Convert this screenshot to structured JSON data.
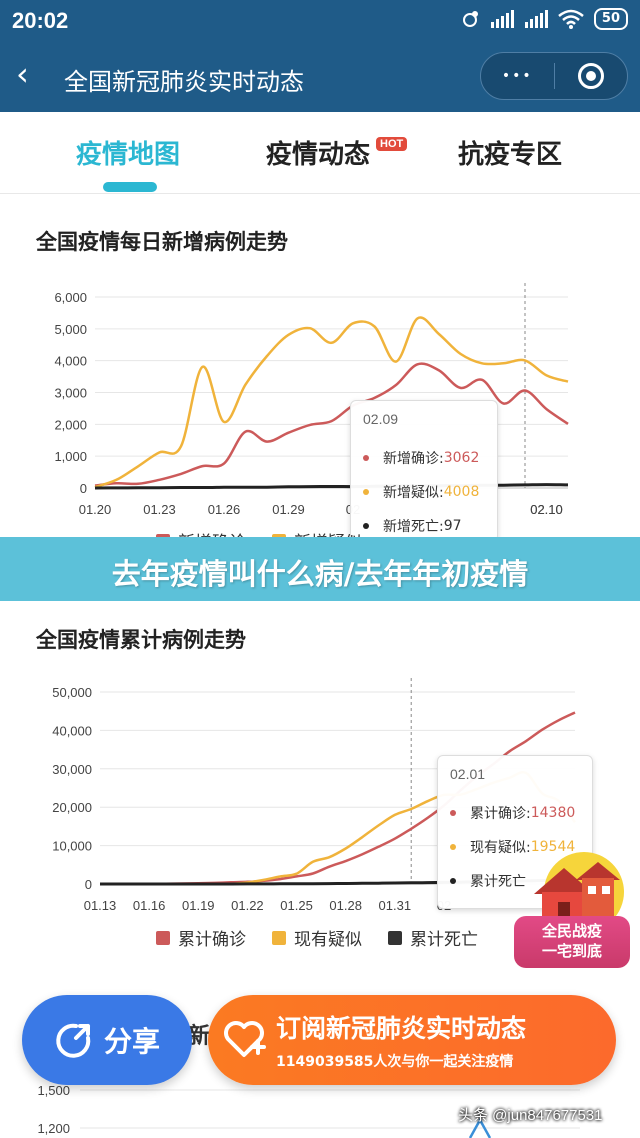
{
  "status_bar": {
    "time": "20:02",
    "battery": "50"
  },
  "title_bar": {
    "title": "全国新冠肺炎实时动态",
    "more_glyph": "•••",
    "back_glyph": "‹"
  },
  "tabs": [
    {
      "label": "疫情地图",
      "active": true
    },
    {
      "label": "疫情动态",
      "badge": "HOT"
    },
    {
      "label": "抗疫专区"
    }
  ],
  "colors": {
    "confirmed": "#cc5a5a",
    "suspected": "#f0b33b",
    "death": "#222222",
    "accent": "#2bb7d2",
    "header": "#1f5b88"
  },
  "chart_data": [
    {
      "type": "line",
      "title": "全国疫情每日新增病例走势",
      "x": [
        "01.20",
        "01.21",
        "01.22",
        "01.23",
        "01.24",
        "01.25",
        "01.26",
        "01.27",
        "01.28",
        "01.29",
        "01.30",
        "01.31",
        "02.01",
        "02.02",
        "02.03",
        "02.04",
        "02.05",
        "02.06",
        "02.07",
        "02.08",
        "02.09",
        "02.10",
        "02.11"
      ],
      "x_ticks": [
        "01.20",
        "01.23",
        "01.26",
        "01.29",
        "02",
        "",
        "",
        "02.10"
      ],
      "y_ticks": [
        "0",
        "1,000",
        "2,000",
        "3,000",
        "4,000",
        "5,000",
        "6,000"
      ],
      "ylim": [
        0,
        6000
      ],
      "grid": true,
      "series": [
        {
          "name": "新增确诊",
          "values": [
            77,
            149,
            131,
            259,
            444,
            688,
            769,
            1771,
            1459,
            1737,
            1982,
            2102,
            2590,
            2829,
            3235,
            3887,
            3694,
            3143,
            3399,
            2656,
            3062,
            2478,
            2015
          ]
        },
        {
          "name": "新增疑似",
          "values": [
            27,
            257,
            680,
            1118,
            1309,
            3806,
            2077,
            3248,
            4148,
            4812,
            5019,
            4562,
            5173,
            5072,
            3971,
            5328,
            4833,
            4214,
            3916,
            3916,
            4008,
            3536,
            3342
          ]
        },
        {
          "name": "新增死亡",
          "values": [
            0,
            3,
            8,
            8,
            16,
            15,
            24,
            26,
            26,
            38,
            43,
            46,
            45,
            57,
            64,
            65,
            73,
            73,
            86,
            89,
            97,
            108,
            97
          ]
        }
      ],
      "legend_labels": [
        "新增确诊",
        "新增疑似"
      ],
      "crosshair_x": "02.09",
      "tooltip": {
        "date": "02.09",
        "rows": [
          {
            "label": "新增确诊: ",
            "value": "3062"
          },
          {
            "label": "新增疑似: ",
            "value": "4008"
          },
          {
            "label": "新增死亡: ",
            "value": "97"
          }
        ]
      }
    },
    {
      "type": "line",
      "title": "全国疫情累计病例走势",
      "x": [
        "01.13",
        "01.14",
        "01.15",
        "01.16",
        "01.17",
        "01.18",
        "01.19",
        "01.20",
        "01.21",
        "01.22",
        "01.23",
        "01.24",
        "01.25",
        "01.26",
        "01.27",
        "01.28",
        "01.29",
        "01.30",
        "01.31",
        "02.01",
        "02.02",
        "02.03",
        "02.04",
        "02.05",
        "02.06",
        "02.07",
        "02.08",
        "02.09",
        "02.10",
        "02.11"
      ],
      "x_ticks": [
        "01.13",
        "01.16",
        "01.19",
        "01.22",
        "01.25",
        "01.28",
        "01.31",
        "02"
      ],
      "y_ticks": [
        "0",
        "10,000",
        "20,000",
        "30,000",
        "40,000",
        "50,000"
      ],
      "ylim": [
        0,
        50000
      ],
      "grid": true,
      "series": [
        {
          "name": "累计确诊",
          "values": [
            41,
            41,
            41,
            45,
            62,
            121,
            198,
            291,
            440,
            571,
            830,
            1287,
            1975,
            2744,
            4515,
            5974,
            7711,
            9692,
            11791,
            14380,
            17205,
            20438,
            24324,
            28018,
            31161,
            34546,
            37198,
            40171,
            42638,
            44653
          ]
        },
        {
          "name": "现有疑似",
          "values": [
            0,
            0,
            0,
            0,
            0,
            0,
            0,
            54,
            37,
            393,
            1072,
            1965,
            2684,
            5794,
            6973,
            9239,
            12167,
            15238,
            17988,
            19544,
            21558,
            23214,
            23260,
            24702,
            26359,
            27657,
            28942,
            23589,
            21675,
            16067
          ]
        },
        {
          "name": "累计死亡",
          "values": [
            1,
            1,
            1,
            2,
            2,
            3,
            3,
            6,
            9,
            17,
            25,
            41,
            56,
            80,
            106,
            132,
            170,
            213,
            259,
            304,
            361,
            425,
            490,
            563,
            636,
            722,
            811,
            908,
            1016,
            1113
          ]
        }
      ],
      "legend_labels": [
        "累计确诊",
        "现有疑似",
        "累计死亡"
      ],
      "crosshair_x": "02.01",
      "tooltip": {
        "date": "02.01",
        "rows": [
          {
            "label": "累计确诊: ",
            "value": "14380"
          },
          {
            "label": "现有疑似: ",
            "value": "19544"
          },
          {
            "label": "累计死亡",
            "value": ""
          }
        ]
      }
    },
    {
      "type": "line",
      "y_ticks": [
        "1,500",
        "1,200"
      ]
    }
  ],
  "banner": {
    "text": "去年疫情叫什么病/去年年初疫情"
  },
  "share": {
    "label": "分享"
  },
  "subscribe": {
    "title": "订阅新冠肺炎实时动态",
    "subtitle": "1149039585人次与你一起关注疫情"
  },
  "campaign_badge": {
    "line1": "全民战疫",
    "line2": "一宅到底"
  },
  "peek_title_fragment": "新",
  "watermark": "头条 @jun847677531"
}
